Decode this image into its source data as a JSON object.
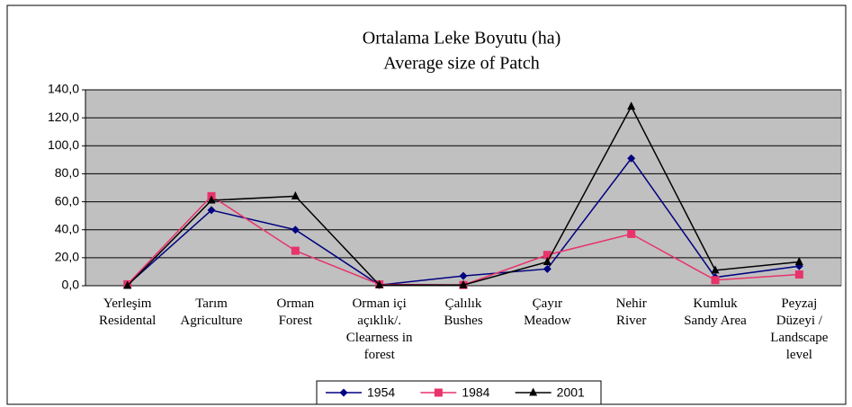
{
  "chart_data": {
    "type": "line",
    "title": [
      "Ortalama Leke Boyutu (ha)",
      "Average size of Patch"
    ],
    "categories": [
      [
        "Yerleşim",
        "Residental"
      ],
      [
        "Tarım",
        "Agriculture"
      ],
      [
        "Orman",
        "Forest"
      ],
      [
        "Orman içi",
        "açıklık/.",
        "Clearness in",
        "forest"
      ],
      [
        "Çalılık",
        "Bushes"
      ],
      [
        "Çayır",
        "Meadow"
      ],
      [
        "Nehir",
        "River"
      ],
      [
        "Kumluk",
        "Sandy Area"
      ],
      [
        "Peyzaj",
        "Düzeyi /",
        "Landscape",
        "level"
      ]
    ],
    "series": [
      {
        "name": "1954",
        "color": "#000080",
        "marker": "diamond",
        "values": [
          0.5,
          54,
          40,
          0.5,
          7,
          12,
          91,
          6,
          14
        ]
      },
      {
        "name": "1984",
        "color": "#e8336b",
        "marker": "square",
        "values": [
          1,
          64,
          25,
          1,
          0.5,
          22,
          37,
          4,
          8
        ]
      },
      {
        "name": "2001",
        "color": "#000000",
        "marker": "triangle",
        "values": [
          0,
          61,
          64,
          0.5,
          0.5,
          17,
          128,
          11,
          17
        ]
      }
    ],
    "ylim": [
      0,
      140
    ],
    "yticks": [
      {
        "value": 0,
        "label": "0,0"
      },
      {
        "value": 20,
        "label": "20,0"
      },
      {
        "value": 40,
        "label": "40,0"
      },
      {
        "value": 60,
        "label": "60,0"
      },
      {
        "value": 80,
        "label": "80,0"
      },
      {
        "value": 100,
        "label": "100,0"
      },
      {
        "value": 120,
        "label": "120,0"
      },
      {
        "value": 140,
        "label": "140,0"
      }
    ],
    "grid": true,
    "plot_background": "#c0c0c0",
    "legend": "bottom"
  }
}
